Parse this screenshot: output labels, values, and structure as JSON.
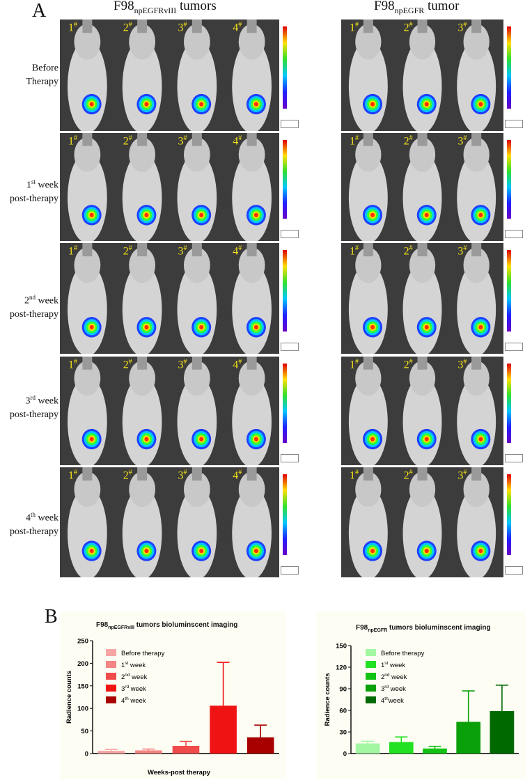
{
  "panel_a_letter": "A",
  "panel_b_letter": "B",
  "column_titles": {
    "left": {
      "base": "F98",
      "sub": "npEGFRvIII",
      "rest": " tumors"
    },
    "right": {
      "base": "F98",
      "sub": "npEGFR",
      "rest": " tumor"
    }
  },
  "rows": [
    {
      "line1": "Before",
      "sup": "",
      "line1_rest": "",
      "line2": "Therapy"
    },
    {
      "line1": "1",
      "sup": "st",
      "line1_rest": " week",
      "line2": "post-therapy"
    },
    {
      "line1": "2",
      "sup": "nd",
      "line1_rest": " week",
      "line2": "post-therapy"
    },
    {
      "line1": "3",
      "sup": "rd",
      "line1_rest": " week",
      "line2": "post-therapy"
    },
    {
      "line1": "4",
      "sup": "th",
      "line1_rest": " week",
      "line2": "post-therapy"
    }
  ],
  "mouse_labels_left": [
    "1",
    "2",
    "3",
    "4"
  ],
  "mouse_labels_right": [
    "1",
    "2",
    "3"
  ],
  "mouse_label_sup": "#",
  "colors": {
    "panel_bg": "#3c3c3c",
    "label_yellow": "#f4e21a",
    "chart_bg": "#fdfdf3"
  },
  "chart_data": [
    {
      "type": "bar",
      "title_base": "F98",
      "title_sub": "npEGFRvIII",
      "title_rest": " tumors bioluminscent imaging",
      "xlabel": "Weeks-post therapy",
      "ylabel": "Radience counts",
      "ylim": [
        0,
        250
      ],
      "yticks": [
        "0",
        "50",
        "100",
        "150",
        "200",
        "250"
      ],
      "categories": [
        "Before therapy",
        "1st week",
        "2nd week",
        "3rd week",
        "4th week"
      ],
      "legend": [
        {
          "main": "Before therapy",
          "sup": "",
          "rest": ""
        },
        {
          "main": "1",
          "sup": "st",
          "rest": " week"
        },
        {
          "main": "2",
          "sup": "nd",
          "rest": " week"
        },
        {
          "main": "3",
          "sup": "rd",
          "rest": " week"
        },
        {
          "main": "4",
          "sup": "th",
          "rest": " week"
        }
      ],
      "values": [
        6,
        7,
        17,
        106,
        36
      ],
      "errors": [
        3,
        3,
        10,
        96,
        27
      ],
      "colors": [
        "#f7a4a4",
        "#f58484",
        "#f04b4b",
        "#ef1313",
        "#a80000"
      ]
    },
    {
      "type": "bar",
      "title_base": "F98",
      "title_sub": "npEGFR",
      "title_rest": " tumors bioluminscent imaging",
      "xlabel": "",
      "ylabel": "Radience counts",
      "ylim": [
        0,
        150
      ],
      "yticks": [
        "0",
        "30",
        "60",
        "90",
        "120",
        "150"
      ],
      "categories": [
        "Before therapy",
        "1st week",
        "2nd week",
        "3rd week",
        "4th week"
      ],
      "legend": [
        {
          "main": "Before therapy",
          "sup": "",
          "rest": ""
        },
        {
          "main": "1",
          "sup": "st",
          "rest": " week"
        },
        {
          "main": "2",
          "sup": "nd",
          "rest": " week"
        },
        {
          "main": "3",
          "sup": "rd",
          "rest": " week"
        },
        {
          "main": "4",
          "sup": "th",
          "rest": "week"
        }
      ],
      "values": [
        14,
        16,
        7,
        44,
        59
      ],
      "errors": [
        3,
        7,
        3,
        43,
        36
      ],
      "colors": [
        "#a3f7a3",
        "#22e022",
        "#13c313",
        "#0aa00a",
        "#006a00"
      ]
    }
  ]
}
